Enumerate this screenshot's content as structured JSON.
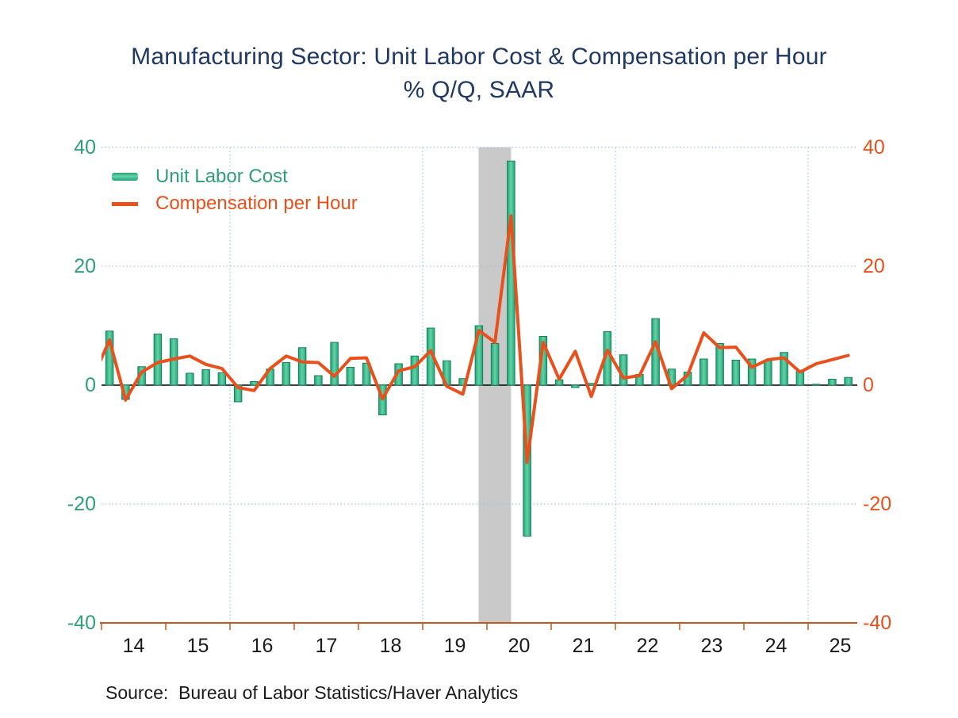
{
  "title": {
    "line1": "Manufacturing Sector: Unit Labor Cost & Compensation per Hour",
    "line2": "% Q/Q, SAAR"
  },
  "legend": {
    "items": [
      {
        "label": "Unit Labor Cost",
        "swatch": "bar",
        "color": "#2F9E79"
      },
      {
        "label": "Compensation per Hour",
        "swatch": "line",
        "color": "#E8501C"
      }
    ]
  },
  "source": "Source:  Bureau of Labor Statistics/Haver Analytics",
  "axes": {
    "left": {
      "ticks": [
        "40",
        "20",
        "0",
        "-20",
        "-40"
      ],
      "color": "#2F9E79"
    },
    "right": {
      "ticks": [
        "40",
        "20",
        "0",
        "-20",
        "-40"
      ],
      "color": "#E8501C"
    },
    "x": {
      "year_labels": [
        "14",
        "15",
        "16",
        "17",
        "18",
        "19",
        "20",
        "21",
        "22",
        "23",
        "24",
        "25"
      ],
      "color": "#1A1A1A"
    }
  },
  "colors": {
    "title": "#1F3864",
    "bar_fill_mid": "#63D3A7",
    "bar_fill_edge": "#25A377",
    "bar_stroke": "#128257",
    "line": "#E8501C",
    "left_axis_text": "#2F9E79",
    "right_axis_text": "#E8501C",
    "x_axis_line": "#BF5B21",
    "x_axis_text": "#1A1A1A",
    "gridline": "#9DC3E6",
    "recession_band": "#C9C9C9",
    "zero_line": "#000000",
    "background": "#FFFFFF"
  },
  "chart_data": {
    "type": "bar",
    "note": "bar series = Unit Labor Cost, line series = Compensation per Hour; % change Q/Q at seasonally adjusted annual rate",
    "categories": [
      "2014Q1",
      "2014Q2",
      "2014Q3",
      "2014Q4",
      "2015Q1",
      "2015Q2",
      "2015Q3",
      "2015Q4",
      "2016Q1",
      "2016Q2",
      "2016Q3",
      "2016Q4",
      "2017Q1",
      "2017Q2",
      "2017Q3",
      "2017Q4",
      "2018Q1",
      "2018Q2",
      "2018Q3",
      "2018Q4",
      "2019Q1",
      "2019Q2",
      "2019Q3",
      "2019Q4",
      "2020Q1",
      "2020Q2",
      "2020Q3",
      "2020Q4",
      "2021Q1",
      "2021Q2",
      "2021Q3",
      "2021Q4",
      "2022Q1",
      "2022Q2",
      "2022Q3",
      "2022Q4",
      "2023Q1",
      "2023Q2",
      "2023Q3",
      "2023Q4",
      "2024Q1",
      "2024Q2",
      "2024Q3",
      "2024Q4",
      "2025Q1",
      "2025Q2",
      "2025Q3"
    ],
    "series": [
      {
        "name": "Unit Labor Cost",
        "type": "bar",
        "values": [
          9.1,
          -2.4,
          3.1,
          8.6,
          7.8,
          2.0,
          2.6,
          2.1,
          -2.8,
          0.6,
          2.7,
          3.8,
          6.3,
          1.6,
          7.2,
          3.0,
          3.7,
          -5.0,
          3.6,
          4.9,
          9.6,
          4.1,
          1.1,
          10.0,
          7.0,
          37.7,
          -25.4,
          8.2,
          0.9,
          -0.4,
          0.3,
          9.0,
          5.1,
          1.8,
          11.2,
          2.7,
          2.2,
          4.4,
          7.0,
          4.2,
          4.4,
          4.1,
          5.5,
          2.3,
          0.15,
          1.0,
          1.3
        ]
      },
      {
        "name": "Compensation per Hour",
        "type": "line",
        "lead_in": {
          "label": "2013Q4",
          "value": 1.5
        },
        "values": [
          7.6,
          -2.5,
          2.2,
          3.8,
          4.4,
          4.9,
          3.5,
          2.8,
          -0.4,
          -0.9,
          2.8,
          4.9,
          3.9,
          3.8,
          1.5,
          4.5,
          4.6,
          -2.3,
          2.4,
          3.1,
          5.8,
          -0.2,
          -1.5,
          9.2,
          7.2,
          28.5,
          -13.0,
          7.2,
          1.0,
          5.7,
          -1.9,
          5.9,
          1.2,
          1.6,
          7.3,
          -0.6,
          1.7,
          8.8,
          6.3,
          6.4,
          3.0,
          4.3,
          4.6,
          2.2,
          3.6,
          4.3,
          5.0
        ]
      }
    ],
    "ylim": [
      -40,
      40
    ],
    "ytick_values": [
      40,
      20,
      0,
      -20,
      -40
    ],
    "grid": {
      "horizontal_dotted_at": [
        40,
        20,
        -20
      ],
      "vertical_dotted_at_year_starts": [
        2016,
        2019,
        2022,
        2025
      ]
    },
    "recession_band": {
      "from_year": 2019.87,
      "to_year": 2020.375
    },
    "x_start_year": 2014,
    "legend_position": "top-left"
  }
}
